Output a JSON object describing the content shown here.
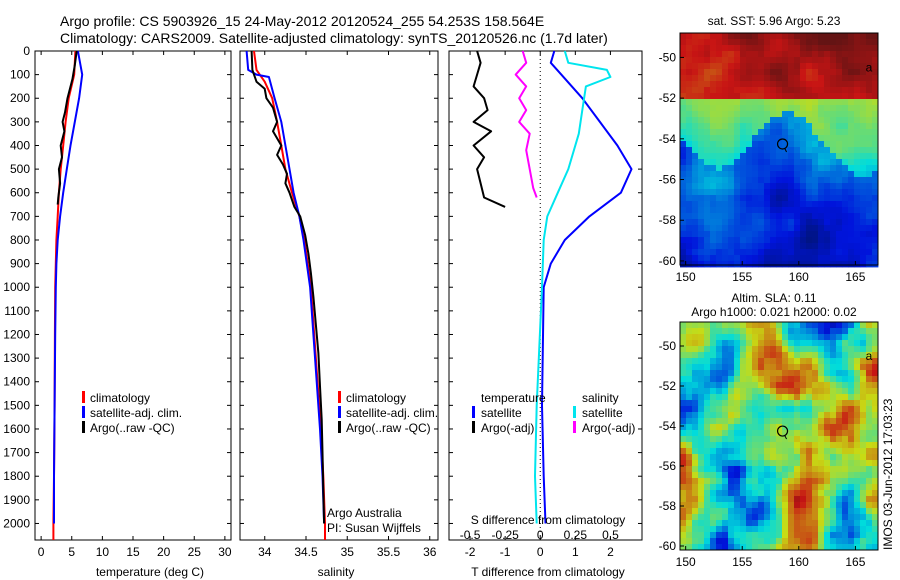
{
  "header": {
    "line1": "Argo profile: CS 5903926_15 24-May-2012 20120524_255 54.253S 158.564E",
    "line2": "Climatology: CARS2009. Satellite-adjusted climatology: synTS_20120526.nc (1.7d later)"
  },
  "colors": {
    "climatology": "#ff0000",
    "satellite": "#0000ff",
    "argo": "#000000",
    "satellite_salinity": "#00e5ee",
    "argo_salinity": "#ff00ff"
  },
  "chart_data": [
    {
      "type": "line",
      "id": "temperature",
      "xlabel": "temperature (deg C)",
      "ylabel": "",
      "xlim": [
        -1,
        31
      ],
      "ylim": [
        2070,
        0
      ],
      "xticks": [
        "0",
        "5",
        "10",
        "15",
        "20",
        "25",
        "30"
      ],
      "yticks": [
        "0",
        "100",
        "200",
        "300",
        "400",
        "500",
        "600",
        "700",
        "800",
        "900",
        "1000",
        "1100",
        "1200",
        "1300",
        "1400",
        "1500",
        "1600",
        "1700",
        "1800",
        "1900",
        "2000"
      ],
      "legend": [
        "climatology",
        "satellite-adj. clim.",
        "Argo(..raw -QC)"
      ],
      "series": [
        {
          "name": "climatology",
          "color": "#ff0000",
          "points": [
            [
              5.6,
              0
            ],
            [
              5.4,
              100
            ],
            [
              4.5,
              200
            ],
            [
              4.0,
              300
            ],
            [
              3.6,
              400
            ],
            [
              3.2,
              500
            ],
            [
              2.9,
              600
            ],
            [
              2.7,
              700
            ],
            [
              2.5,
              800
            ],
            [
              2.4,
              900
            ],
            [
              2.3,
              1000
            ],
            [
              2.25,
              1200
            ],
            [
              2.2,
              1500
            ],
            [
              2.1,
              1800
            ],
            [
              2.0,
              2000
            ],
            [
              2.0,
              2070
            ]
          ]
        },
        {
          "name": "satellite-adj. clim.",
          "color": "#0000ff",
          "points": [
            [
              6.0,
              0
            ],
            [
              6.7,
              100
            ],
            [
              6.2,
              200
            ],
            [
              5.5,
              300
            ],
            [
              4.8,
              400
            ],
            [
              4.2,
              500
            ],
            [
              3.6,
              600
            ],
            [
              3.1,
              700
            ],
            [
              2.7,
              800
            ],
            [
              2.5,
              900
            ],
            [
              2.4,
              1000
            ],
            [
              2.3,
              1200
            ],
            [
              2.2,
              1500
            ],
            [
              2.1,
              1800
            ],
            [
              2.1,
              2000
            ]
          ]
        },
        {
          "name": "Argo(..raw -QC)",
          "color": "#000000",
          "points": [
            [
              5.8,
              0
            ],
            [
              5.5,
              60
            ],
            [
              5.1,
              120
            ],
            [
              4.3,
              200
            ],
            [
              3.9,
              260
            ],
            [
              3.5,
              300
            ],
            [
              3.8,
              340
            ],
            [
              3.2,
              400
            ],
            [
              3.4,
              450
            ],
            [
              2.9,
              500
            ],
            [
              3.1,
              560
            ],
            [
              2.8,
              620
            ],
            [
              2.7,
              650
            ]
          ]
        }
      ]
    },
    {
      "type": "line",
      "id": "salinity",
      "xlabel": "salinity",
      "xlim": [
        33.7,
        36.1
      ],
      "ylim": [
        2070,
        0
      ],
      "xticks": [
        "34",
        "34.5",
        "35",
        "35.5",
        "36"
      ],
      "legend": [
        "climatology",
        "satellite-adj. clim.",
        "Argo(..raw -QC)"
      ],
      "annotation": [
        "Argo Australia",
        "PI: Susan Wijffels"
      ],
      "series": [
        {
          "name": "climatology",
          "color": "#ff0000",
          "points": [
            [
              33.87,
              0
            ],
            [
              33.9,
              80
            ],
            [
              34.0,
              130
            ],
            [
              34.09,
              200
            ],
            [
              34.15,
              300
            ],
            [
              34.2,
              400
            ],
            [
              34.25,
              500
            ],
            [
              34.33,
              600
            ],
            [
              34.42,
              700
            ],
            [
              34.48,
              800
            ],
            [
              34.52,
              900
            ],
            [
              34.56,
              1000
            ],
            [
              34.6,
              1200
            ],
            [
              34.64,
              1400
            ],
            [
              34.68,
              1600
            ],
            [
              34.71,
              1800
            ],
            [
              34.73,
              2000
            ],
            [
              34.73,
              2070
            ]
          ]
        },
        {
          "name": "satellite-adj. clim.",
          "color": "#0000ff",
          "points": [
            [
              33.78,
              0
            ],
            [
              33.8,
              80
            ],
            [
              33.9,
              100
            ],
            [
              34.05,
              110
            ],
            [
              34.12,
              200
            ],
            [
              34.2,
              300
            ],
            [
              34.25,
              400
            ],
            [
              34.3,
              500
            ],
            [
              34.35,
              600
            ],
            [
              34.42,
              700
            ],
            [
              34.47,
              800
            ],
            [
              34.51,
              900
            ],
            [
              34.55,
              1000
            ],
            [
              34.59,
              1200
            ],
            [
              34.63,
              1400
            ],
            [
              34.67,
              1600
            ],
            [
              34.7,
              1800
            ],
            [
              34.72,
              2000
            ]
          ]
        },
        {
          "name": "Argo(..raw -QC)",
          "color": "#000000",
          "points": [
            [
              33.84,
              0
            ],
            [
              33.85,
              80
            ],
            [
              33.9,
              130
            ],
            [
              34.0,
              160
            ],
            [
              34.02,
              200
            ],
            [
              34.1,
              240
            ],
            [
              34.15,
              300
            ],
            [
              34.1,
              340
            ],
            [
              34.2,
              400
            ],
            [
              34.15,
              440
            ],
            [
              34.22,
              480
            ],
            [
              34.27,
              520
            ],
            [
              34.25,
              560
            ],
            [
              34.3,
              600
            ],
            [
              34.36,
              660
            ],
            [
              34.43,
              700
            ],
            [
              34.49,
              780
            ],
            [
              34.53,
              860
            ],
            [
              34.56,
              940
            ],
            [
              34.59,
              1040
            ],
            [
              34.62,
              1160
            ],
            [
              34.65,
              1280
            ],
            [
              34.67,
              1420
            ],
            [
              34.69,
              1560
            ],
            [
              34.7,
              1700
            ],
            [
              34.71,
              1860
            ],
            [
              34.72,
              2000
            ]
          ]
        }
      ]
    },
    {
      "type": "line",
      "id": "difference",
      "xlabel": "T difference from climatology",
      "xlabel_top": "S difference from climatology",
      "xlim": [
        -2.6,
        2.9
      ],
      "ylim": [
        2070,
        0
      ],
      "xticks": [
        "-2",
        "-1",
        "0",
        "1",
        "2"
      ],
      "xticks_top": [
        "-0.5",
        "-0.25",
        "0",
        "0.25",
        "0.5"
      ],
      "legend_t": {
        "title": "temperature",
        "items": [
          "satellite",
          "Argo(-adj)"
        ]
      },
      "legend_s": {
        "title": "salinity",
        "items": [
          "satellite",
          "Argo(-adj)"
        ]
      },
      "series": [
        {
          "name": "temperature satellite",
          "color": "#0000ff",
          "points": [
            [
              0.4,
              0
            ],
            [
              0.3,
              50
            ],
            [
              0.6,
              100
            ],
            [
              1.2,
              200
            ],
            [
              1.7,
              300
            ],
            [
              2.2,
              400
            ],
            [
              2.6,
              500
            ],
            [
              2.3,
              600
            ],
            [
              1.4,
              700
            ],
            [
              0.7,
              800
            ],
            [
              0.3,
              900
            ],
            [
              0.1,
              1000
            ],
            [
              0.05,
              1500
            ],
            [
              0.1,
              1800
            ],
            [
              0.15,
              2000
            ]
          ]
        },
        {
          "name": "temperature Argo(-adj)",
          "color": "#000000",
          "points": [
            [
              -1.8,
              0
            ],
            [
              -1.7,
              50
            ],
            [
              -1.8,
              100
            ],
            [
              -1.9,
              150
            ],
            [
              -1.6,
              200
            ],
            [
              -1.5,
              250
            ],
            [
              -1.9,
              300
            ],
            [
              -1.4,
              340
            ],
            [
              -1.9,
              400
            ],
            [
              -1.6,
              450
            ],
            [
              -1.8,
              500
            ],
            [
              -1.7,
              560
            ],
            [
              -1.6,
              620
            ],
            [
              -1.0,
              660
            ]
          ]
        },
        {
          "name": "salinity satellite",
          "color": "#00e5ee",
          "points": [
            [
              0.7,
              0
            ],
            [
              0.8,
              50
            ],
            [
              1.9,
              80
            ],
            [
              2.0,
              110
            ],
            [
              1.3,
              150
            ],
            [
              1.2,
              250
            ],
            [
              1.1,
              350
            ],
            [
              0.8,
              500
            ],
            [
              0.5,
              600
            ],
            [
              0.2,
              700
            ],
            [
              0.1,
              800
            ],
            [
              0.05,
              1000
            ],
            [
              -0.1,
              1500
            ],
            [
              -0.15,
              1800
            ],
            [
              -0.1,
              2000
            ]
          ]
        },
        {
          "name": "salinity Argo(-adj)",
          "color": "#ff00ff",
          "points": [
            [
              -0.5,
              0
            ],
            [
              -0.4,
              50
            ],
            [
              -0.7,
              100
            ],
            [
              -0.4,
              150
            ],
            [
              -0.6,
              200
            ],
            [
              -0.4,
              250
            ],
            [
              -0.6,
              300
            ],
            [
              -0.3,
              350
            ],
            [
              -0.4,
              420
            ],
            [
              -0.3,
              500
            ],
            [
              -0.2,
              580
            ],
            [
              -0.1,
              620
            ]
          ]
        }
      ]
    },
    {
      "type": "heatmap",
      "id": "sst_map",
      "title": "sat. SST: 5.96 Argo: 5.23",
      "xlim": [
        149.5,
        167
      ],
      "ylim": [
        -60.2,
        -48.8
      ],
      "xticks": [
        "150",
        "155",
        "160",
        "165"
      ],
      "yticks": [
        "-50",
        "-52",
        "-54",
        "-56",
        "-58",
        "-60"
      ],
      "marker": {
        "lon": 158.564,
        "lat": -54.253
      },
      "marker_label": "a"
    },
    {
      "type": "heatmap",
      "id": "sla_map",
      "title_lines": [
        "Altim. SLA: 0.11",
        "Argo h1000: 0.021 h2000: 0.02"
      ],
      "xlim": [
        149.5,
        167
      ],
      "ylim": [
        -60.2,
        -48.8
      ],
      "xticks": [
        "150",
        "155",
        "160",
        "165"
      ],
      "yticks": [
        "-50",
        "-52",
        "-54",
        "-56",
        "-58",
        "-60"
      ],
      "marker": {
        "lon": 158.564,
        "lat": -54.253
      },
      "marker_label": "a"
    }
  ],
  "footer": {
    "stamp": "IMOS 03-Jun-2012 17:03:23"
  }
}
